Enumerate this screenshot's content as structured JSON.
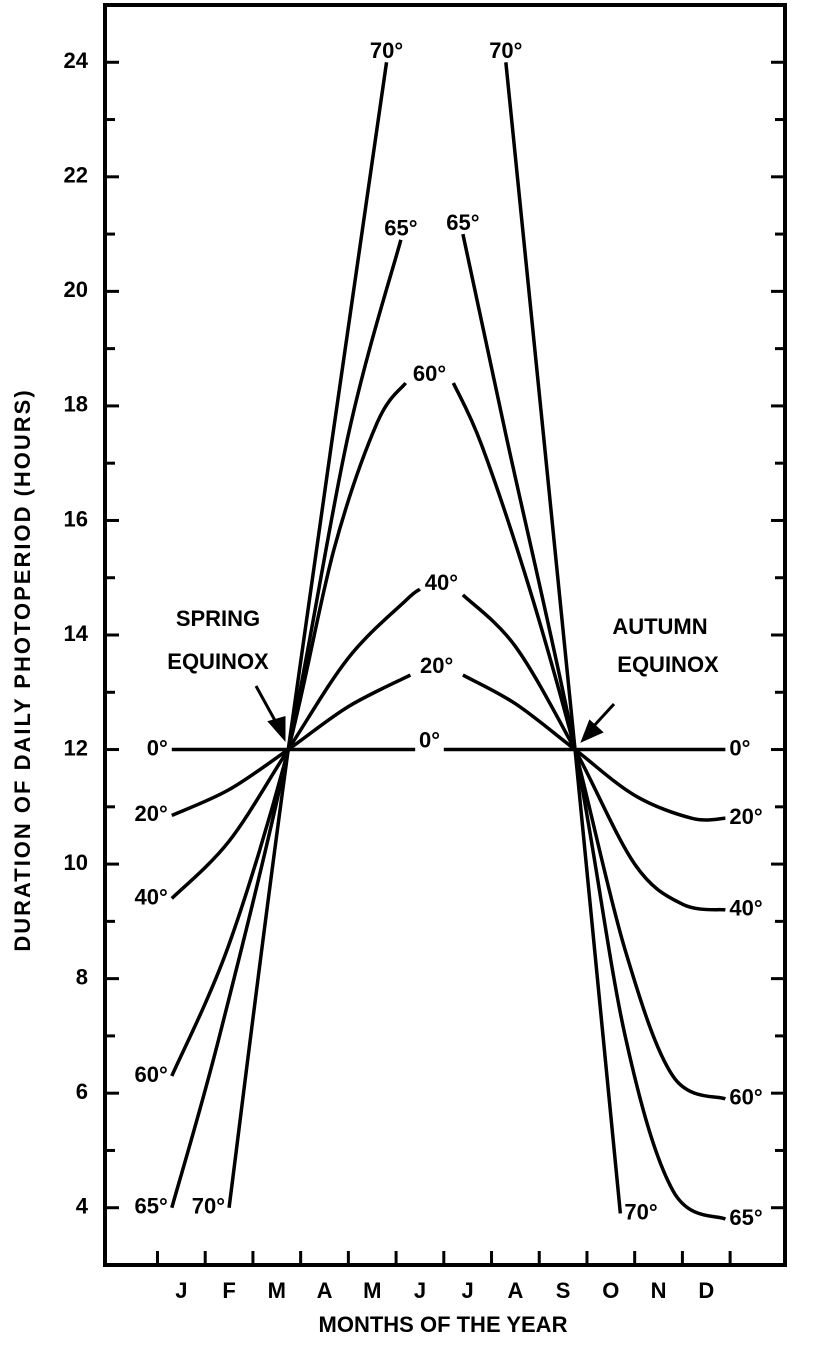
{
  "chart_data": {
    "type": "line",
    "xlabel": "MONTHS OF THE YEAR",
    "ylabel": "DURATION OF DAILY PHOTOPERIOD (HOURS)",
    "categories": [
      "J",
      "F",
      "M",
      "A",
      "M",
      "J",
      "J",
      "A",
      "S",
      "O",
      "N",
      "D"
    ],
    "xlim": [
      -1.1,
      13.15
    ],
    "xticks": [
      0,
      1,
      2,
      3,
      4,
      5,
      6,
      7,
      8,
      9,
      10,
      11,
      12
    ],
    "ylim": [
      3,
      25
    ],
    "yticks": [
      4,
      6,
      8,
      10,
      12,
      14,
      16,
      18,
      20,
      22,
      24
    ],
    "color": "#000000",
    "series": [
      {
        "name": "0°",
        "x": [
          0.3,
          5.4,
          5.7,
          6.0,
          11.9
        ],
        "values": [
          12,
          12,
          null,
          12,
          12
        ]
      },
      {
        "name": "20°",
        "x": [
          0.3,
          1.5,
          2.74,
          4.0,
          5.3,
          5.8,
          6.4,
          7.5,
          8.75,
          10.0,
          11.2,
          11.9
        ],
        "values": [
          10.85,
          11.3,
          12,
          12.75,
          13.3,
          null,
          13.3,
          12.8,
          12,
          11.2,
          10.8,
          10.8
        ]
      },
      {
        "name": "40°",
        "x": [
          0.3,
          1.5,
          2.74,
          4.0,
          5.2,
          5.5,
          5.9,
          6.4,
          7.5,
          8.75,
          10.0,
          11.0,
          11.9
        ],
        "values": [
          9.4,
          10.4,
          12,
          13.6,
          14.6,
          14.8,
          null,
          14.7,
          13.8,
          12,
          10.0,
          9.3,
          9.2
        ]
      },
      {
        "name": "60°",
        "x": [
          0.3,
          1.5,
          2.74,
          3.7,
          4.6,
          5.2,
          5.7,
          6.2,
          6.8,
          7.8,
          8.75,
          9.8,
          10.8,
          11.9
        ],
        "values": [
          6.3,
          8.6,
          12,
          15.5,
          17.7,
          18.4,
          null,
          18.4,
          17.3,
          14.8,
          12,
          8.5,
          6.3,
          5.9
        ]
      },
      {
        "name": "65°",
        "x": [
          0.3,
          1.3,
          2.74,
          4.0,
          5.1,
          5.75,
          6.4,
          7.3,
          8.75,
          9.8,
          10.8,
          11.9
        ],
        "values": [
          4.0,
          7.0,
          12,
          17.5,
          20.9,
          null,
          21.0,
          17.5,
          12,
          7.0,
          4.3,
          3.8
        ]
      },
      {
        "name": "70°",
        "x": [
          1.5,
          2.74,
          4.8,
          6.0,
          7.3,
          8.75,
          9.7
        ],
        "values": [
          4.0,
          12,
          24,
          null,
          24,
          12,
          3.9
        ]
      }
    ],
    "annotations": [
      {
        "lines": [
          "SPRING",
          "EQUINOX"
        ]
      },
      {
        "lines": [
          "AUTUMN",
          "EQUINOX"
        ]
      }
    ]
  }
}
